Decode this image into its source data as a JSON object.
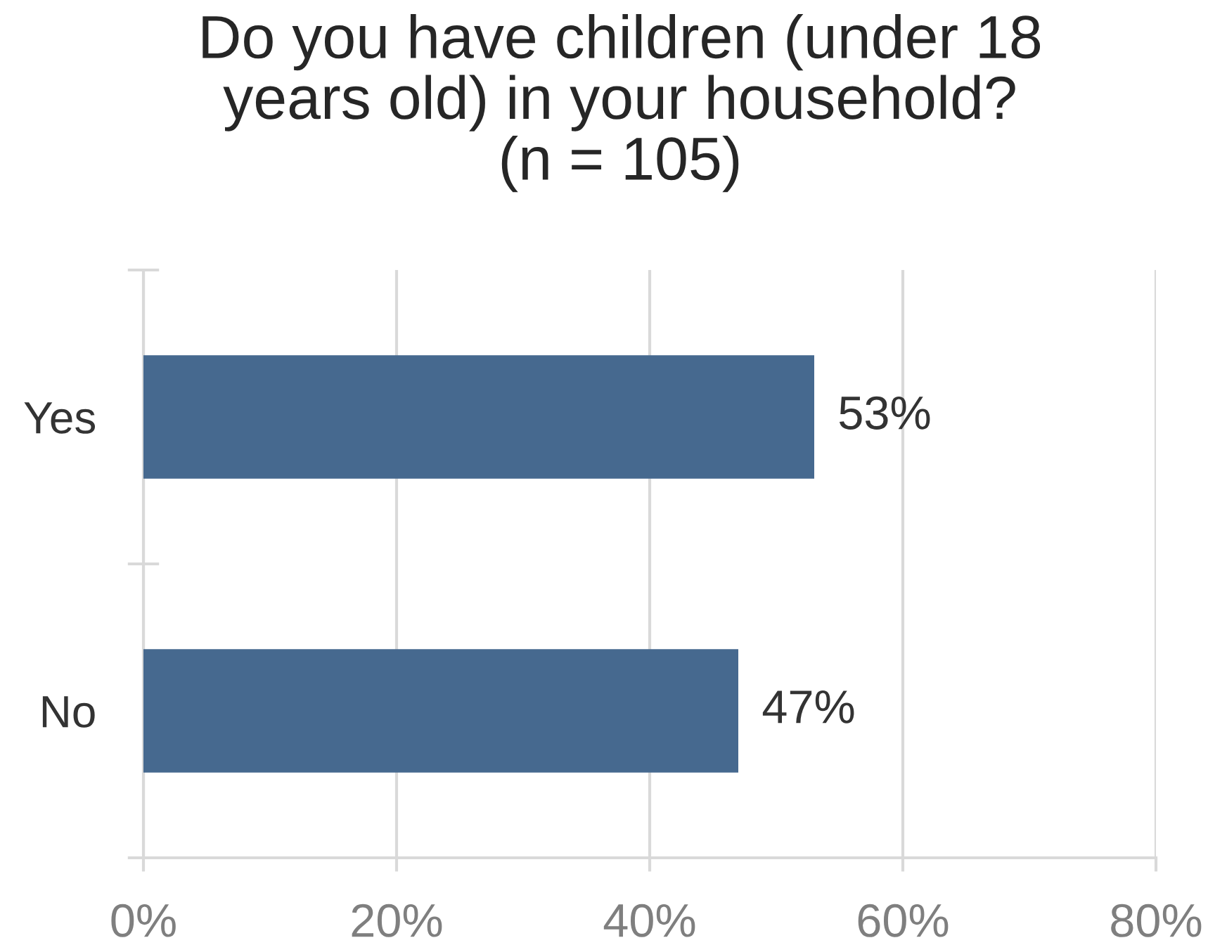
{
  "chart_data": {
    "type": "bar",
    "orientation": "horizontal",
    "title": "Do you have children (under 18\nyears old) in your household?\n(n = 105)",
    "categories": [
      "Yes",
      "No"
    ],
    "values": [
      53,
      47
    ],
    "color": "#46698f",
    "value_labels": [
      "53%",
      "47%"
    ],
    "xlim": [
      0,
      80
    ],
    "xticks": [
      {
        "value": 0,
        "label": "0%"
      },
      {
        "value": 20,
        "label": "20%"
      },
      {
        "value": 40,
        "label": "40%"
      },
      {
        "value": 60,
        "label": "60%"
      },
      {
        "value": 80,
        "label": "80%"
      }
    ],
    "grid": "x"
  }
}
